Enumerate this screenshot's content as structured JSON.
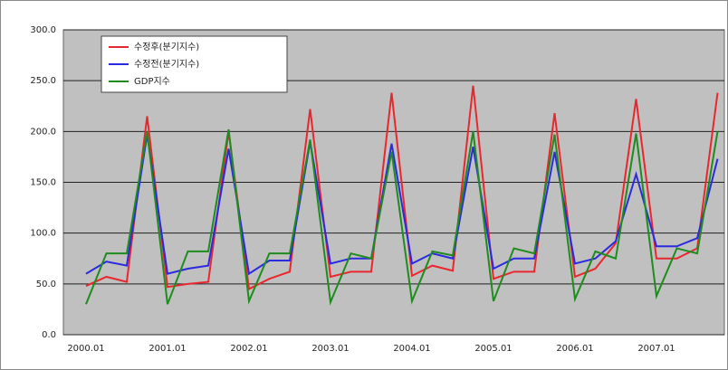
{
  "chart_data": {
    "type": "line",
    "categories": [
      "2000.01",
      null,
      null,
      null,
      "2001.01",
      null,
      null,
      null,
      "2002.01",
      null,
      null,
      null,
      "2003.01",
      null,
      null,
      null,
      "2004.01",
      null,
      null,
      null,
      "2005.01",
      null,
      null,
      null,
      "2006.01",
      null,
      null,
      null,
      "2007.01",
      null,
      null,
      null
    ],
    "series": [
      {
        "name": "수정후(분기지수)",
        "color": "#e8282e",
        "values": [
          48,
          57,
          52,
          215,
          47,
          50,
          52,
          200,
          45,
          55,
          62,
          222,
          57,
          62,
          62,
          238,
          58,
          68,
          63,
          245,
          55,
          62,
          62,
          218,
          57,
          65,
          90,
          232,
          75,
          75,
          85,
          238
        ]
      },
      {
        "name": "수정전(분기지수)",
        "color": "#2a2ae0",
        "values": [
          60,
          72,
          68,
          197,
          60,
          65,
          68,
          183,
          60,
          73,
          73,
          190,
          70,
          75,
          75,
          188,
          70,
          80,
          75,
          185,
          65,
          75,
          75,
          180,
          70,
          75,
          92,
          158,
          87,
          87,
          95,
          173
        ]
      },
      {
        "name": "GDP지수",
        "color": "#1e8c1e",
        "values": [
          30,
          80,
          80,
          200,
          30,
          82,
          82,
          202,
          33,
          80,
          80,
          192,
          32,
          80,
          75,
          180,
          33,
          82,
          78,
          200,
          33,
          85,
          80,
          197,
          35,
          82,
          75,
          198,
          38,
          85,
          80,
          200
        ]
      }
    ],
    "ylim": [
      0,
      300
    ],
    "yticks": [
      {
        "value": 0,
        "label": "0.0"
      },
      {
        "value": 50,
        "label": "50.0"
      },
      {
        "value": 100,
        "label": "100.0"
      },
      {
        "value": 150,
        "label": "150.0"
      },
      {
        "value": 200,
        "label": "200.0"
      },
      {
        "value": 250,
        "label": "250.0"
      },
      {
        "value": 300,
        "label": "300.0"
      }
    ],
    "grid": true,
    "legend": "upper left"
  }
}
